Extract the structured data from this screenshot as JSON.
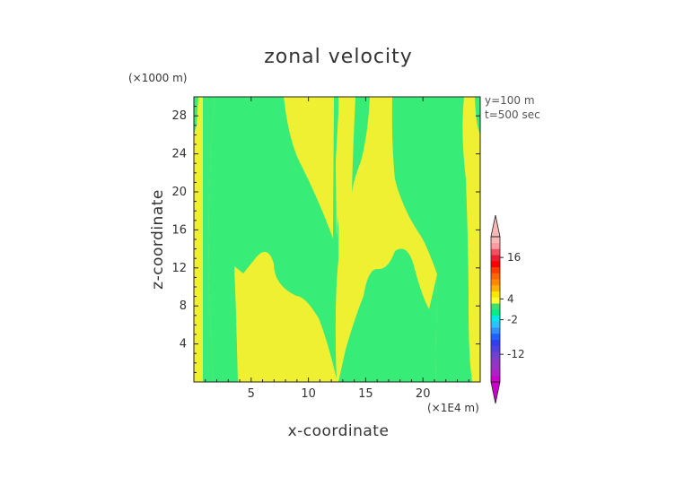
{
  "chart_data": {
    "type": "heatmap",
    "title": "zonal velocity",
    "xlabel": "x-coordinate",
    "ylabel": "z-coordinate",
    "x_unit": "(×1E4 m)",
    "y_unit": "(×1000 m)",
    "annotations": [
      "y=100 m",
      "t=500 sec"
    ],
    "xlim": [
      0,
      25
    ],
    "ylim": [
      0,
      30
    ],
    "xticks": [
      5,
      10,
      15,
      20
    ],
    "yticks": [
      4,
      8,
      12,
      16,
      20,
      24,
      28
    ],
    "colorbar": {
      "tick_labels": [
        "16",
        "4",
        "-2",
        "-12"
      ],
      "tick_values": [
        16,
        4,
        -2,
        -12
      ],
      "range": [
        -20,
        22
      ],
      "colors": [
        "#cc00cc",
        "#b020c8",
        "#9a30c4",
        "#8a38c8",
        "#7040d0",
        "#5040e0",
        "#3040f0",
        "#2060ff",
        "#3090ff",
        "#30c0ff",
        "#00e8e8",
        "#00ee88",
        "#40e070",
        "#ffff30",
        "#f8e800",
        "#ffb000",
        "#ff8800",
        "#ff6600",
        "#ff3c00",
        "#ff0000",
        "#ee1c30",
        "#f05060",
        "#ff9aa0",
        "#f8b8b8"
      ]
    },
    "fill_colors": {
      "positive": "#f0f032",
      "negative": "#38ec78"
    }
  }
}
